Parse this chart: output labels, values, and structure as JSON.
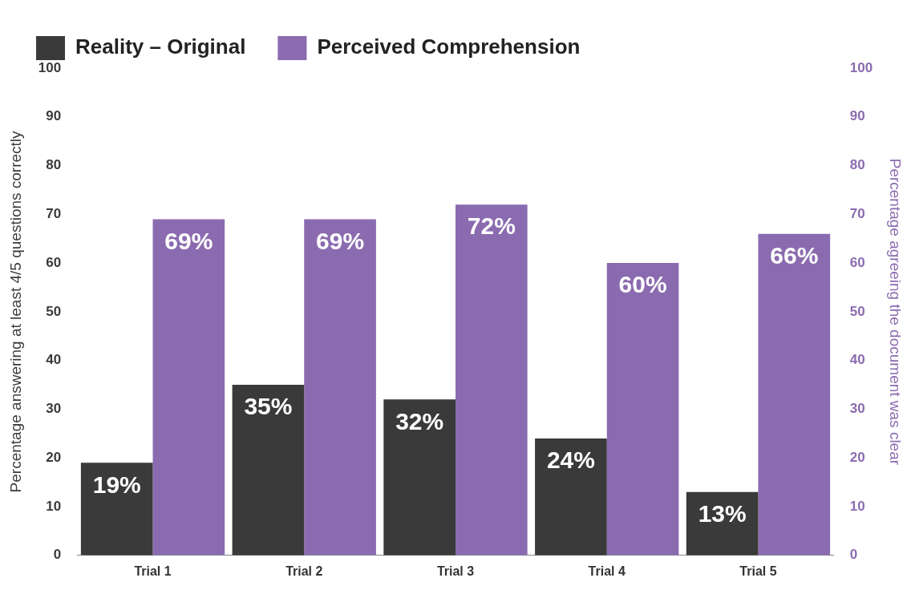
{
  "chart_data": {
    "type": "bar",
    "categories": [
      "Trial 1",
      "Trial 2",
      "Trial 3",
      "Trial 4",
      "Trial 5"
    ],
    "ylabel": "Percentage answering at least 4/5 questions correctly",
    "y2label": "Percentage agreeing the document was clear",
    "ylim": [
      0,
      100
    ],
    "yticks": [
      0,
      10,
      20,
      30,
      40,
      50,
      60,
      70,
      80,
      90,
      100
    ],
    "y2lim": [
      0,
      100
    ],
    "y2ticks": [
      0,
      10,
      20,
      30,
      40,
      50,
      60,
      70,
      80,
      90,
      100
    ],
    "series": [
      {
        "name": "Reality – Original",
        "color": "#3a3a3a",
        "values": [
          19,
          35,
          32,
          24,
          13
        ],
        "value_labels": [
          "19%",
          "35%",
          "32%",
          "24%",
          "13%"
        ]
      },
      {
        "name": "Perceived Comprehension",
        "color": "#8b6bb0",
        "axis": "y2",
        "values": [
          69,
          69,
          72,
          60,
          66
        ],
        "value_labels": [
          "69%",
          "69%",
          "72%",
          "60%",
          "66%"
        ]
      }
    ],
    "grid": false,
    "legend": "top left"
  }
}
